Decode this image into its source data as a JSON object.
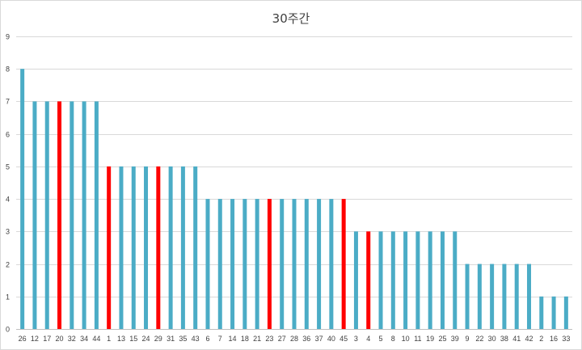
{
  "chart_data": {
    "type": "bar",
    "title": "30주간",
    "xlabel": "",
    "ylabel": "",
    "ylim": [
      0,
      9
    ],
    "yticks": [
      0,
      1,
      2,
      3,
      4,
      5,
      6,
      7,
      8,
      9
    ],
    "grid": true,
    "legend": "none",
    "categories": [
      "26",
      "12",
      "17",
      "20",
      "32",
      "34",
      "44",
      "1",
      "13",
      "15",
      "24",
      "29",
      "31",
      "35",
      "43",
      "6",
      "7",
      "14",
      "18",
      "21",
      "23",
      "27",
      "28",
      "36",
      "37",
      "40",
      "45",
      "3",
      "4",
      "5",
      "8",
      "10",
      "11",
      "19",
      "25",
      "39",
      "9",
      "22",
      "30",
      "38",
      "41",
      "42",
      "2",
      "16",
      "33"
    ],
    "values": [
      8,
      7,
      7,
      7,
      7,
      7,
      7,
      5,
      5,
      5,
      5,
      5,
      5,
      5,
      5,
      4,
      4,
      4,
      4,
      4,
      4,
      4,
      4,
      4,
      4,
      4,
      4,
      3,
      3,
      3,
      3,
      3,
      3,
      3,
      3,
      3,
      2,
      2,
      2,
      2,
      2,
      2,
      1,
      1,
      1
    ],
    "highlighted": [
      "20",
      "1",
      "29",
      "23",
      "45",
      "4"
    ],
    "colors": {
      "default": "#4bacc6",
      "highlight": "#ff0000",
      "grid": "#d9d9d9",
      "text": "#404040"
    }
  }
}
